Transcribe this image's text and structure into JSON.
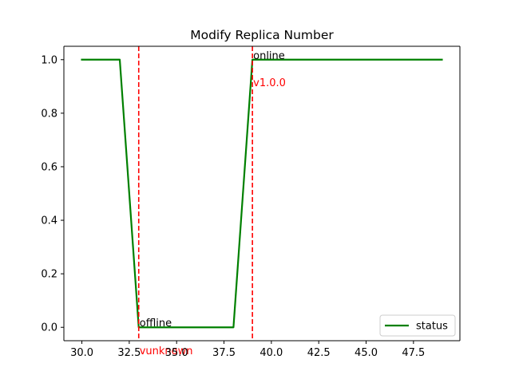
{
  "chart_data": {
    "type": "line",
    "title": "Modify Replica Number",
    "xlabel": "",
    "ylabel": "",
    "xlim": [
      29.05,
      49.95
    ],
    "ylim": [
      -0.05,
      1.05
    ],
    "x_ticks": [
      30.0,
      32.5,
      35.0,
      37.5,
      40.0,
      42.5,
      45.0,
      47.5
    ],
    "x_tick_labels": [
      "30.0",
      "32.5",
      "35.0",
      "37.5",
      "40.0",
      "42.5",
      "45.0",
      "47.5"
    ],
    "y_ticks": [
      0.0,
      0.2,
      0.4,
      0.6,
      0.8,
      1.0
    ],
    "y_tick_labels": [
      "0.0",
      "0.2",
      "0.4",
      "0.6",
      "0.8",
      "1.0"
    ],
    "grid": false,
    "legend_position": "lower-right",
    "series": [
      {
        "name": "status",
        "color": "#008000",
        "x": [
          30,
          31,
          32,
          33,
          34,
          35,
          36,
          37,
          38,
          39,
          40,
          41,
          42,
          43,
          44,
          45,
          46,
          47,
          48,
          49
        ],
        "y": [
          1,
          1,
          1,
          0,
          0,
          0,
          0,
          0,
          0,
          1,
          1,
          1,
          1,
          1,
          1,
          1,
          1,
          1,
          1,
          1
        ]
      }
    ],
    "vlines": [
      {
        "x": 33,
        "color": "#ff0000",
        "style": "dashed",
        "label": "vunknown"
      },
      {
        "x": 39,
        "color": "#ff0000",
        "style": "dashed",
        "label": "v1.0.0"
      }
    ],
    "annotations": [
      {
        "text": "offline",
        "x": 33,
        "y": 0.0,
        "color": "#000000"
      },
      {
        "text": "online",
        "x": 39,
        "y": 1.0,
        "color": "#000000"
      }
    ]
  }
}
